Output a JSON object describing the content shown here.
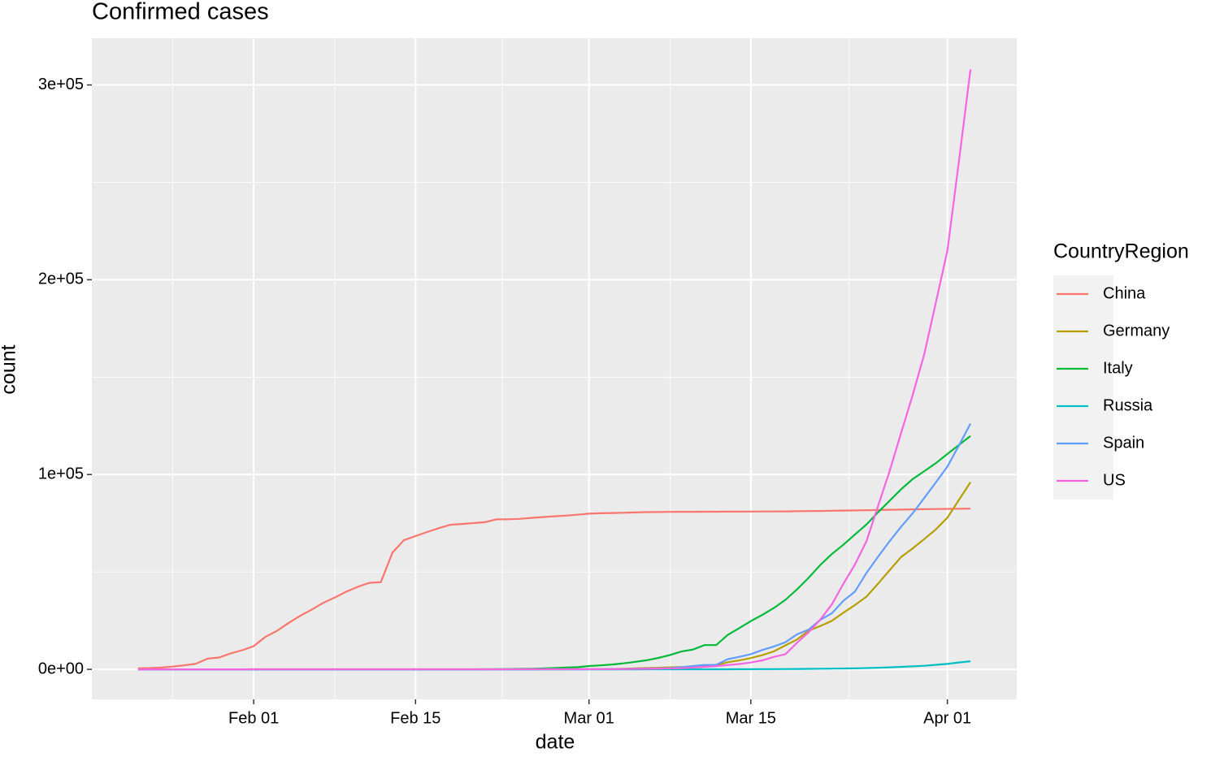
{
  "chart_data": {
    "type": "line",
    "title": "Confirmed cases",
    "x_label": "date",
    "y_label": "count",
    "legend_title": "CountryRegion",
    "legend_position": "right",
    "grid": true,
    "x": [
      "Jan 22",
      "Jan 23",
      "Jan 24",
      "Jan 25",
      "Jan 26",
      "Jan 27",
      "Jan 28",
      "Jan 29",
      "Jan 30",
      "Jan 31",
      "Feb 01",
      "Feb 02",
      "Feb 03",
      "Feb 04",
      "Feb 05",
      "Feb 06",
      "Feb 07",
      "Feb 08",
      "Feb 09",
      "Feb 10",
      "Feb 11",
      "Feb 12",
      "Feb 13",
      "Feb 14",
      "Feb 15",
      "Feb 16",
      "Feb 17",
      "Feb 18",
      "Feb 19",
      "Feb 20",
      "Feb 21",
      "Feb 22",
      "Feb 23",
      "Feb 24",
      "Feb 25",
      "Feb 26",
      "Feb 27",
      "Feb 28",
      "Feb 29",
      "Mar 01",
      "Mar 02",
      "Mar 03",
      "Mar 04",
      "Mar 05",
      "Mar 06",
      "Mar 07",
      "Mar 08",
      "Mar 09",
      "Mar 10",
      "Mar 11",
      "Mar 12",
      "Mar 13",
      "Mar 14",
      "Mar 15",
      "Mar 16",
      "Mar 17",
      "Mar 18",
      "Mar 19",
      "Mar 20",
      "Mar 21",
      "Mar 22",
      "Mar 23",
      "Mar 24",
      "Mar 25",
      "Mar 26",
      "Mar 27",
      "Mar 28",
      "Mar 29",
      "Mar 30",
      "Mar 31",
      "Apr 01",
      "Apr 02",
      "Apr 03"
    ],
    "xlim": [
      "Jan 18",
      "Apr 07"
    ],
    "xticks": [
      "Feb 01",
      "Feb 15",
      "Mar 01",
      "Mar 15",
      "Apr 01"
    ],
    "ylim": [
      -15400,
      324000
    ],
    "yticks": [
      {
        "value": 0,
        "label": "0e+00"
      },
      {
        "value": 100000,
        "label": "1e+05"
      },
      {
        "value": 200000,
        "label": "2e+05"
      },
      {
        "value": 300000,
        "label": "3e+05"
      }
    ],
    "series": [
      {
        "name": "China",
        "color": "#F8766D",
        "values": [
          548,
          643,
          920,
          1406,
          2075,
          2877,
          5509,
          6087,
          8141,
          9802,
          11891,
          16630,
          19716,
          23707,
          27440,
          30587,
          34110,
          36814,
          39829,
          42354,
          44386,
          44759,
          59895,
          66358,
          68413,
          70513,
          72434,
          74211,
          74619,
          75077,
          75550,
          77001,
          77022,
          77241,
          77754,
          78166,
          78600,
          78928,
          79356,
          79932,
          80136,
          80261,
          80386,
          80537,
          80690,
          80770,
          80823,
          80860,
          80887,
          80921,
          80932,
          80945,
          80977,
          81003,
          81033,
          81058,
          81102,
          81156,
          81250,
          81305,
          81435,
          81498,
          81591,
          81661,
          81782,
          81897,
          81999,
          82122,
          82198,
          82279,
          82361,
          82432,
          82511
        ]
      },
      {
        "name": "Germany",
        "color": "#B79F00",
        "values": [
          0,
          0,
          0,
          0,
          0,
          1,
          4,
          4,
          4,
          5,
          8,
          10,
          12,
          12,
          12,
          12,
          13,
          13,
          14,
          14,
          16,
          16,
          16,
          16,
          16,
          16,
          16,
          16,
          16,
          16,
          16,
          16,
          16,
          16,
          17,
          27,
          46,
          48,
          79,
          130,
          159,
          196,
          262,
          482,
          670,
          799,
          1040,
          1176,
          1457,
          1908,
          2078,
          3675,
          4585,
          5795,
          7272,
          9257,
          12327,
          15320,
          19848,
          22213,
          24873,
          29056,
          32986,
          37323,
          43938,
          50871,
          57695,
          62095,
          66885,
          71808,
          77872,
          87000,
          96092
        ]
      },
      {
        "name": "Italy",
        "color": "#00BA38",
        "values": [
          0,
          0,
          0,
          0,
          0,
          0,
          0,
          0,
          0,
          2,
          2,
          2,
          2,
          2,
          2,
          2,
          3,
          3,
          3,
          3,
          3,
          3,
          3,
          3,
          3,
          3,
          3,
          3,
          3,
          3,
          20,
          62,
          155,
          229,
          322,
          453,
          655,
          888,
          1128,
          1694,
          2036,
          2502,
          3089,
          3858,
          4636,
          5883,
          7375,
          9172,
          10149,
          12462,
          12462,
          17660,
          21157,
          24747,
          27980,
          31506,
          35713,
          41035,
          47021,
          53578,
          59138,
          63927,
          69176,
          74386,
          80589,
          86498,
          92472,
          97689,
          101739,
          105792,
          110574,
          115242,
          119827
        ]
      },
      {
        "name": "Russia",
        "color": "#00BFC4",
        "values": [
          0,
          0,
          0,
          0,
          0,
          0,
          0,
          0,
          0,
          2,
          2,
          2,
          2,
          2,
          2,
          2,
          2,
          2,
          2,
          2,
          2,
          2,
          2,
          2,
          2,
          2,
          2,
          2,
          2,
          2,
          2,
          2,
          2,
          2,
          2,
          2,
          2,
          2,
          2,
          2,
          3,
          3,
          3,
          4,
          13,
          13,
          17,
          17,
          20,
          20,
          28,
          45,
          59,
          63,
          90,
          114,
          147,
          199,
          253,
          306,
          367,
          438,
          495,
          658,
          840,
          1036,
          1264,
          1534,
          1836,
          2337,
          2777,
          3548,
          4149
        ]
      },
      {
        "name": "Spain",
        "color": "#619CFF",
        "values": [
          0,
          0,
          0,
          0,
          0,
          0,
          0,
          0,
          0,
          0,
          1,
          1,
          1,
          1,
          1,
          1,
          1,
          1,
          2,
          2,
          2,
          2,
          2,
          2,
          2,
          2,
          2,
          2,
          2,
          2,
          2,
          2,
          2,
          2,
          6,
          13,
          15,
          32,
          45,
          84,
          120,
          165,
          222,
          259,
          400,
          500,
          673,
          1073,
          1695,
          2277,
          2277,
          5232,
          6391,
          7798,
          9942,
          11748,
          13910,
          17963,
          20410,
          25374,
          28768,
          35136,
          39885,
          49515,
          57786,
          65719,
          73235,
          80110,
          87956,
          95923,
          104118,
          115000,
          126168
        ]
      },
      {
        "name": "US",
        "color": "#F564E3",
        "values": [
          1,
          1,
          2,
          2,
          5,
          5,
          5,
          5,
          5,
          6,
          8,
          8,
          11,
          11,
          11,
          11,
          11,
          11,
          11,
          12,
          12,
          13,
          13,
          13,
          13,
          13,
          13,
          13,
          13,
          13,
          15,
          15,
          15,
          51,
          51,
          57,
          58,
          60,
          68,
          74,
          98,
          118,
          149,
          217,
          262,
          402,
          518,
          583,
          959,
          1281,
          1663,
          2179,
          2727,
          3499,
          4632,
          6421,
          7786,
          13680,
          19101,
          25493,
          33276,
          43847,
          53740,
          65778,
          83836,
          101657,
          121478,
          140886,
          161807,
          188172,
          215000,
          261000,
          308000
        ]
      }
    ]
  }
}
